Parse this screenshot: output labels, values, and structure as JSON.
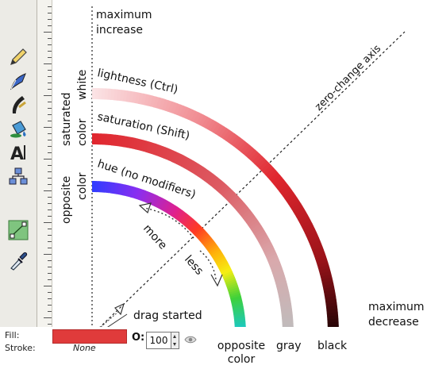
{
  "labels": {
    "max_increase": [
      "maximum",
      "increase"
    ],
    "max_decrease": [
      "maximum",
      "decrease"
    ],
    "zero_change_axis": "zero-change axis",
    "lightness": "lightness (Ctrl)",
    "saturation": "saturation (Shift)",
    "hue": "hue (no modifiers)",
    "white": "white",
    "saturated_color": [
      "saturated",
      "color"
    ],
    "opposite_color_left": [
      "opposite",
      "color"
    ],
    "more": "more",
    "less": "less",
    "drag_started": "drag started",
    "opposite_color_bottom": [
      "opposite",
      "color"
    ],
    "gray": "gray",
    "black": "black"
  },
  "statusbar": {
    "fill_label": "Fill:",
    "stroke_label": "Stroke:",
    "stroke_value": "None",
    "opacity_label": "O:",
    "opacity_value": "100"
  },
  "colors": {
    "fill": "#e03b3b",
    "lightness_arc": "#e0262e",
    "saturation_arc": "#d91f2a",
    "hue_arc_start": "#1e3cff"
  },
  "icons": [
    "pen-icon",
    "calligraphy-icon",
    "bucket-icon",
    "text-icon",
    "connector-icon",
    "node-icon",
    "dropper-icon"
  ]
}
